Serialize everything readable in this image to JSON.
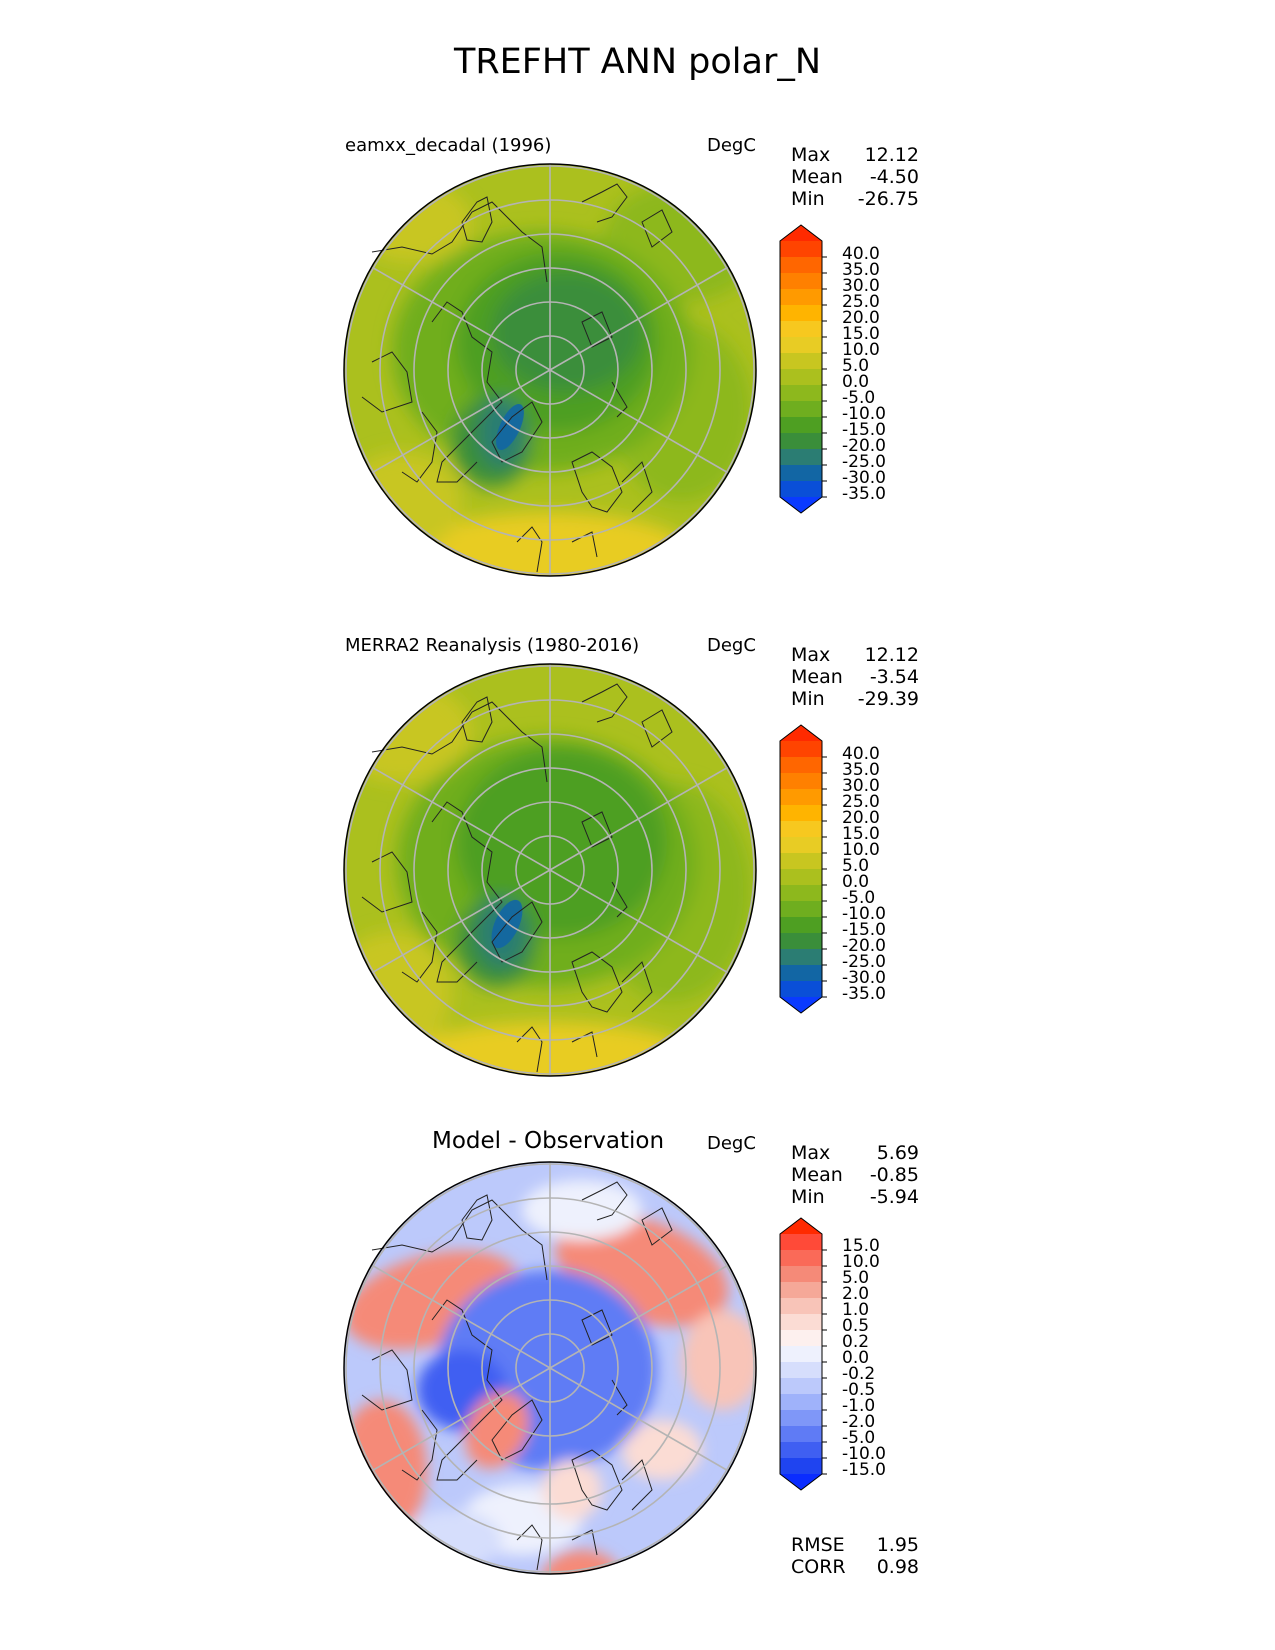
{
  "figure_title": "TREFHT ANN polar_N",
  "panels": [
    {
      "title": "eamxx_decadal (1996)",
      "units": "DegC",
      "stats": [
        {
          "label": "Max",
          "value": "12.12"
        },
        {
          "label": "Mean",
          "value": "-4.50"
        },
        {
          "label": "Min",
          "value": "-26.75"
        }
      ],
      "colorbar": {
        "ticks": [
          "40.0",
          "35.0",
          "30.0",
          "25.0",
          "20.0",
          "15.0",
          "10.0",
          "5.0",
          "0.0",
          "-5.0",
          "-10.0",
          "-15.0",
          "-20.0",
          "-25.0",
          "-30.0",
          "-35.0"
        ],
        "colors": [
          "#ff2a00",
          "#ff4400",
          "#ff6600",
          "#ff8000",
          "#ff9a00",
          "#ffb400",
          "#f7c81f",
          "#e8cc24",
          "#c8c620",
          "#abc01e",
          "#8db81d",
          "#6fae1f",
          "#4e9f22",
          "#3a8e3a",
          "#2b7d73",
          "#1266a4",
          "#0a4fd8",
          "#0a3aff"
        ]
      }
    },
    {
      "title": "MERRA2 Reanalysis (1980-2016)",
      "units": "DegC",
      "stats": [
        {
          "label": "Max",
          "value": "12.12"
        },
        {
          "label": "Mean",
          "value": "-3.54"
        },
        {
          "label": "Min",
          "value": "-29.39"
        }
      ],
      "colorbar": {
        "ticks": [
          "40.0",
          "35.0",
          "30.0",
          "25.0",
          "20.0",
          "15.0",
          "10.0",
          "5.0",
          "0.0",
          "-5.0",
          "-10.0",
          "-15.0",
          "-20.0",
          "-25.0",
          "-30.0",
          "-35.0"
        ],
        "colors": [
          "#ff2a00",
          "#ff4400",
          "#ff6600",
          "#ff8000",
          "#ff9a00",
          "#ffb400",
          "#f7c81f",
          "#e8cc24",
          "#c8c620",
          "#abc01e",
          "#8db81d",
          "#6fae1f",
          "#4e9f22",
          "#3a8e3a",
          "#2b7d73",
          "#1266a4",
          "#0a4fd8",
          "#0a3aff"
        ]
      }
    },
    {
      "title": "Model - Observation",
      "units": "DegC",
      "stats": [
        {
          "label": "Max",
          "value": "5.69"
        },
        {
          "label": "Mean",
          "value": "-0.85"
        },
        {
          "label": "Min",
          "value": "-5.94"
        }
      ],
      "colorbar": {
        "ticks": [
          "15.0",
          "10.0",
          "5.0",
          "2.0",
          "1.0",
          "0.5",
          "0.2",
          "0.0",
          "-0.2",
          "-0.5",
          "-1.0",
          "-2.0",
          "-5.0",
          "-10.0",
          "-15.0"
        ],
        "colors": [
          "#ff2a00",
          "#ff4a38",
          "#fa6a58",
          "#f58a78",
          "#f5a898",
          "#f8c4b8",
          "#fbdcd4",
          "#fdf0ee",
          "#eef1fd",
          "#d6defc",
          "#bcc9fb",
          "#9fb2fa",
          "#7f97f8",
          "#5f7bf5",
          "#3f5ff2",
          "#1f44f0",
          "#0a2cff"
        ]
      },
      "errors": [
        {
          "label": "RMSE",
          "value": "1.95"
        },
        {
          "label": "CORR",
          "value": "0.98"
        }
      ]
    }
  ]
}
